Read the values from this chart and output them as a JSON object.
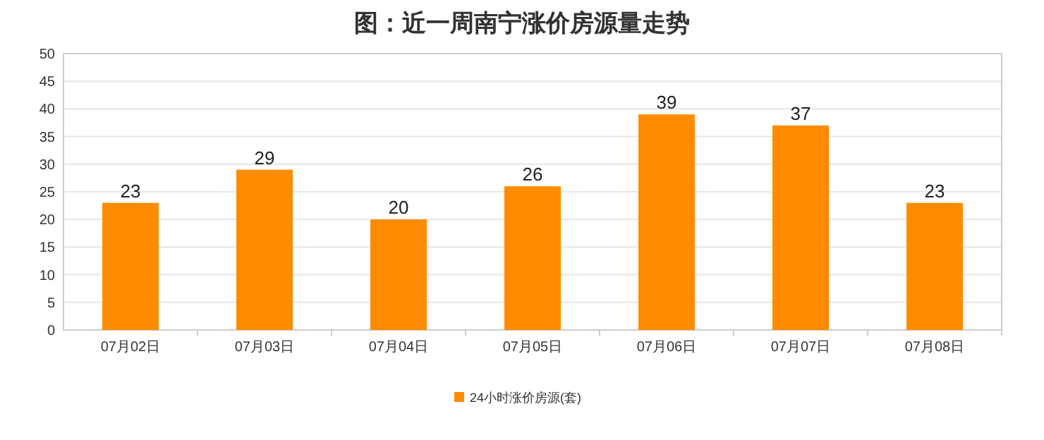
{
  "chart_data": {
    "type": "bar",
    "title": "图：近一周南宁涨价房源量走势",
    "categories": [
      "07月02日",
      "07月03日",
      "07月04日",
      "07月05日",
      "07月06日",
      "07月07日",
      "07月08日"
    ],
    "series": [
      {
        "name": "24小时涨价房源(套)",
        "color": "#ff8c00",
        "values": [
          23,
          29,
          20,
          26,
          39,
          37,
          23
        ]
      }
    ],
    "ylim": [
      0,
      50
    ],
    "yticks": [
      0,
      5,
      10,
      15,
      20,
      25,
      30,
      35,
      40,
      45,
      50
    ],
    "grid": "y",
    "legend": "bottom",
    "data_labels": true
  }
}
